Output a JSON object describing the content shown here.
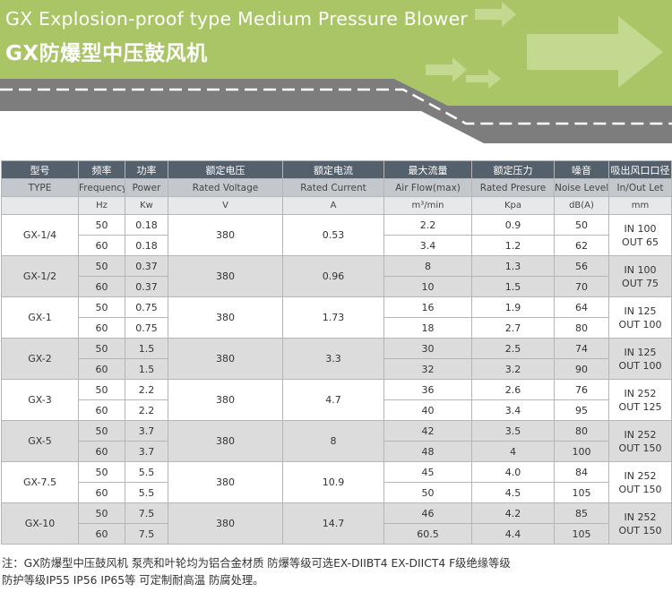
{
  "banner": {
    "title_en": "GX Explosion-proof type Medium Pressure Blower",
    "title_cn": "GX防爆型中压鼓风机",
    "colors": {
      "green": "#a9c565",
      "light_green": "#c3d98f",
      "gray": "#7d7d7d"
    },
    "icons": [
      "arrow-icon"
    ]
  },
  "table": {
    "headers_cn": [
      "型号",
      "频率",
      "功率",
      "额定电压",
      "额定电流",
      "最大流量",
      "额定压力",
      "噪音",
      "吸出风口口径"
    ],
    "headers_en": [
      "TYPE",
      "Frequency",
      "Power",
      "Rated Voltage",
      "Rated Current",
      "Air Flow(max)",
      "Rated Presure",
      "Noise Level",
      "In/Out Let"
    ],
    "units": [
      "",
      "Hz",
      "Kw",
      "V",
      "A",
      "m³/min",
      "Kpa",
      "dB(A)",
      "mm"
    ],
    "models": [
      {
        "type": "GX-1/4",
        "voltage": "380",
        "current": "0.53",
        "port_in": "IN 100",
        "port_out": "OUT 65",
        "rows": [
          {
            "freq": "50",
            "power": "0.18",
            "flow": "2.2",
            "pressure": "0.9",
            "noise": "50"
          },
          {
            "freq": "60",
            "power": "0.18",
            "flow": "3.4",
            "pressure": "1.2",
            "noise": "62"
          }
        ]
      },
      {
        "type": "GX-1/2",
        "voltage": "380",
        "current": "0.96",
        "port_in": "IN 100",
        "port_out": "OUT 75",
        "rows": [
          {
            "freq": "50",
            "power": "0.37",
            "flow": "8",
            "pressure": "1.3",
            "noise": "56"
          },
          {
            "freq": "60",
            "power": "0.37",
            "flow": "10",
            "pressure": "1.5",
            "noise": "70"
          }
        ]
      },
      {
        "type": "GX-1",
        "voltage": "380",
        "current": "1.73",
        "port_in": "IN 125",
        "port_out": "OUT 100",
        "rows": [
          {
            "freq": "50",
            "power": "0.75",
            "flow": "16",
            "pressure": "1.9",
            "noise": "64"
          },
          {
            "freq": "60",
            "power": "0.75",
            "flow": "18",
            "pressure": "2.7",
            "noise": "80"
          }
        ]
      },
      {
        "type": "GX-2",
        "voltage": "380",
        "current": "3.3",
        "port_in": "IN 125",
        "port_out": "OUT 100",
        "rows": [
          {
            "freq": "50",
            "power": "1.5",
            "flow": "30",
            "pressure": "2.5",
            "noise": "74"
          },
          {
            "freq": "60",
            "power": "1.5",
            "flow": "32",
            "pressure": "3.2",
            "noise": "90"
          }
        ]
      },
      {
        "type": "GX-3",
        "voltage": "380",
        "current": "4.7",
        "port_in": "IN 252",
        "port_out": "OUT 125",
        "rows": [
          {
            "freq": "50",
            "power": "2.2",
            "flow": "36",
            "pressure": "2.6",
            "noise": "76"
          },
          {
            "freq": "60",
            "power": "2.2",
            "flow": "40",
            "pressure": "3.4",
            "noise": "95"
          }
        ]
      },
      {
        "type": "GX-5",
        "voltage": "380",
        "current": "8",
        "port_in": "IN 252",
        "port_out": "OUT 150",
        "rows": [
          {
            "freq": "50",
            "power": "3.7",
            "flow": "42",
            "pressure": "3.5",
            "noise": "80"
          },
          {
            "freq": "60",
            "power": "3.7",
            "flow": "48",
            "pressure": "4",
            "noise": "100"
          }
        ]
      },
      {
        "type": "GX-7.5",
        "voltage": "380",
        "current": "10.9",
        "port_in": "IN 252",
        "port_out": "OUT 150",
        "rows": [
          {
            "freq": "50",
            "power": "5.5",
            "flow": "45",
            "pressure": "4.0",
            "noise": "84"
          },
          {
            "freq": "60",
            "power": "5.5",
            "flow": "50",
            "pressure": "4.5",
            "noise": "105"
          }
        ]
      },
      {
        "type": "GX-10",
        "voltage": "380",
        "current": "14.7",
        "port_in": "IN 252",
        "port_out": "OUT 150",
        "rows": [
          {
            "freq": "50",
            "power": "7.5",
            "flow": "46",
            "pressure": "4.2",
            "noise": "85"
          },
          {
            "freq": "60",
            "power": "7.5",
            "flow": "60.5",
            "pressure": "4.4",
            "noise": "105"
          }
        ]
      }
    ]
  },
  "note": {
    "line1": "注：GX防爆型中压鼓风机 泵壳和叶轮均为铝合金材质 防爆等级可选EX-DIIBT4 EX-DIICT4  F级绝缘等级",
    "line2": "防护等级IP55 IP56  IP65等 可定制耐高温 防腐处理。"
  }
}
